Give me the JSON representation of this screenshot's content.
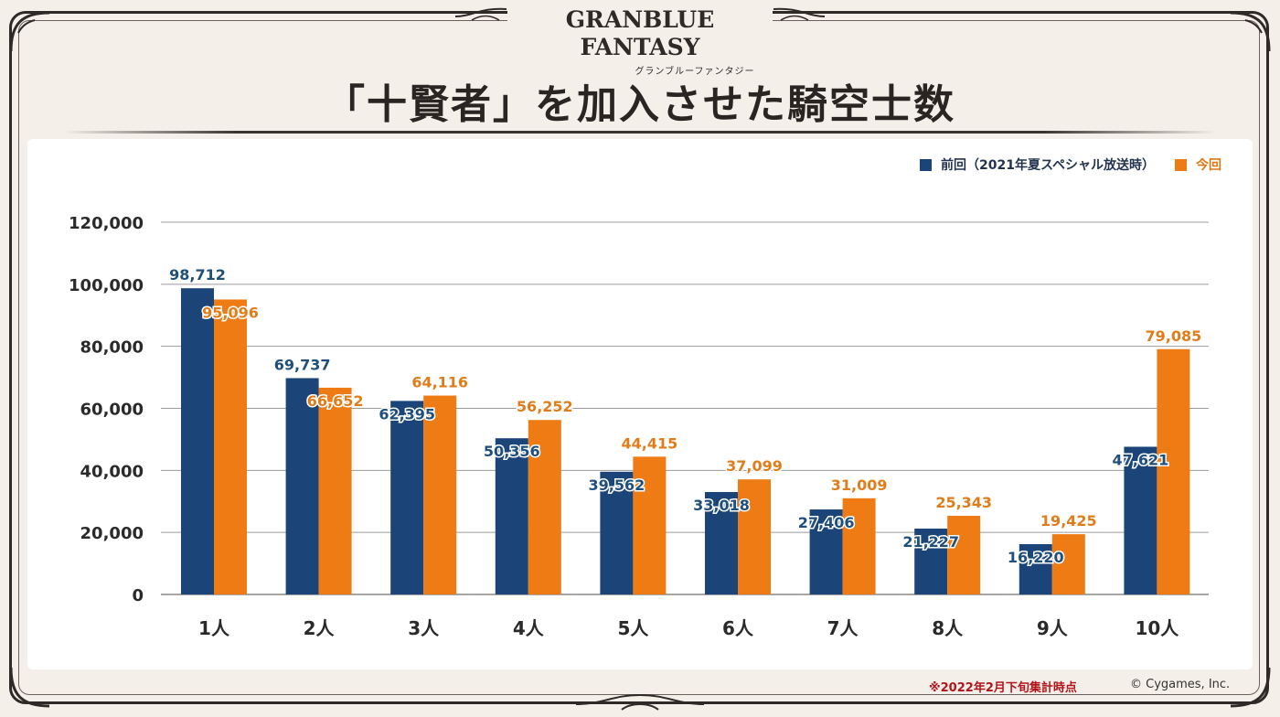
{
  "header": {
    "logo_main": "GRANBLUE FANTASY",
    "logo_sub": "グランブルーファンタジー",
    "title": "「十賢者」を加入させた騎空士数"
  },
  "legend": {
    "previous": "前回（2021年夏スペシャル放送時）",
    "current": "今回"
  },
  "footer": {
    "note": "※2022年2月下旬集計時点",
    "copyright": "© Cygames, Inc."
  },
  "colors": {
    "previous": "#1b4479",
    "current": "#ee7b14",
    "previous_label": "#1f4f7d",
    "current_label": "#e07d1a"
  },
  "chart_data": {
    "type": "bar",
    "categories": [
      "1人",
      "2人",
      "3人",
      "4人",
      "5人",
      "6人",
      "7人",
      "8人",
      "9人",
      "10人"
    ],
    "series": [
      {
        "name": "前回（2021年夏スペシャル放送時）",
        "values": [
          98712,
          69737,
          62395,
          50356,
          39562,
          33018,
          27406,
          21227,
          16220,
          47621
        ],
        "labels": [
          "98,712",
          "69,737",
          "62,395",
          "50,356",
          "39,562",
          "33,018",
          "27,406",
          "21,227",
          "16,220",
          "47,621"
        ]
      },
      {
        "name": "今回",
        "values": [
          95096,
          66652,
          64116,
          56252,
          44415,
          37099,
          31009,
          25343,
          19425,
          79085
        ],
        "labels": [
          "95,096",
          "66,652",
          "64,116",
          "56,252",
          "44,415",
          "37,099",
          "31,009",
          "25,343",
          "19,425",
          "79,085"
        ]
      }
    ],
    "yticks": [
      "0",
      "20,000",
      "40,000",
      "60,000",
      "80,000",
      "100,000",
      "120,000"
    ],
    "ytick_values": [
      0,
      20000,
      40000,
      60000,
      80000,
      100000,
      120000
    ],
    "ylim": [
      0,
      120000
    ],
    "grid": true,
    "legend_position": "top-right"
  }
}
